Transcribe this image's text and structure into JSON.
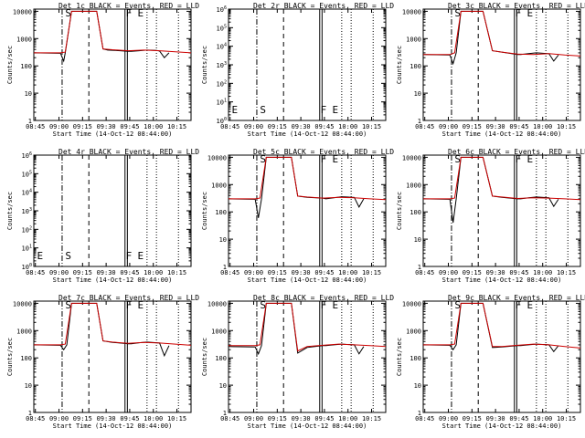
{
  "x_ticks": [
    "08:45",
    "09:00",
    "09:15",
    "09:30",
    "09:45",
    "10:00",
    "10:15"
  ],
  "xlabel": "Start Time (14-Oct-12 08:44:00)",
  "ylabel": "Counts/sec",
  "panels_flag_labels": [
    "E",
    "S",
    "F",
    "E"
  ],
  "colors": {
    "events": "#000000",
    "lld": "#cc0000"
  },
  "chart_data": [
    {
      "type": "line",
      "title": "Det 1c BLACK = Events, RED = LLD",
      "scale": "linear",
      "y_ticks": [
        "1",
        "10",
        "100",
        "1000",
        "10000"
      ],
      "ylim_log10": [
        0,
        4.08
      ],
      "x_range_min": [
        0,
        100
      ],
      "flag_labels_shown": [
        false,
        true,
        true,
        true
      ],
      "flags_x_min": [
        2,
        21,
        41,
        61
      ],
      "series": [
        {
          "name": "Events",
          "color": "#000000",
          "x": [
            0,
            17,
            19,
            20,
            24,
            40,
            44,
            47,
            55,
            60,
            62,
            67,
            72,
            78,
            80,
            83,
            86
          ],
          "y": [
            300,
            290,
            150,
            300,
            10000,
            10000,
            420,
            380,
            360,
            340,
            340,
            360,
            380,
            370,
            350,
            200,
            300
          ],
          "y_visible_from": 19
        },
        {
          "name": "LLD",
          "color": "#cc0000",
          "x": [
            0,
            17,
            20,
            24,
            40,
            44,
            50,
            60,
            70,
            80,
            90,
            100
          ],
          "y": [
            300,
            300,
            320,
            10000,
            10000,
            420,
            390,
            360,
            380,
            360,
            330,
            300
          ]
        }
      ]
    },
    {
      "type": "line",
      "title": "Det 2r BLACK = Events, RED = LLD",
      "scale": "sci",
      "y_ticks": [
        "10^0",
        "10^1",
        "10^2",
        "10^3",
        "10^4",
        "10^5",
        "10^6"
      ],
      "ylim_log10": [
        0,
        6
      ],
      "x_range_min": [
        0,
        100
      ],
      "flag_labels_shown": [
        true,
        true,
        true,
        true
      ],
      "flags_x_min": [
        2,
        21,
        41,
        61
      ],
      "series": []
    },
    {
      "type": "line",
      "title": "Det 3c BLACK = Events, RED = LLD",
      "scale": "linear",
      "y_ticks": [
        "1",
        "10",
        "100",
        "1000",
        "10000"
      ],
      "ylim_log10": [
        0,
        4.08
      ],
      "x_range_min": [
        0,
        100
      ],
      "flag_labels_shown": [
        false,
        true,
        true,
        true
      ],
      "flags_x_min": [
        2,
        21,
        41,
        61
      ],
      "series": [
        {
          "name": "Events",
          "color": "#000000",
          "x": [
            0,
            17,
            19,
            21,
            24,
            38,
            44,
            50,
            60,
            62,
            67,
            72,
            80,
            83,
            86
          ],
          "y": [
            260,
            250,
            120,
            300,
            10000,
            10000,
            360,
            320,
            260,
            260,
            280,
            300,
            280,
            150,
            250
          ],
          "y_visible_from": 19
        },
        {
          "name": "LLD",
          "color": "#cc0000",
          "x": [
            0,
            17,
            20,
            24,
            38,
            44,
            50,
            60,
            70,
            80,
            90,
            100
          ],
          "y": [
            260,
            260,
            300,
            10000,
            10000,
            360,
            320,
            270,
            260,
            280,
            250,
            230
          ]
        }
      ]
    },
    {
      "type": "line",
      "title": "Det 4r BLACK = Events, RED = LLD",
      "scale": "sci",
      "y_ticks": [
        "10^0",
        "10^1",
        "10^2",
        "10^3",
        "10^4",
        "10^5",
        "10^6"
      ],
      "ylim_log10": [
        0,
        6
      ],
      "x_range_min": [
        0,
        100
      ],
      "flag_labels_shown": [
        true,
        true,
        true,
        true
      ],
      "flags_x_min": [
        2,
        21,
        41,
        61
      ],
      "series": []
    },
    {
      "type": "line",
      "title": "Det 5c BLACK = Events, RED = LLD",
      "scale": "linear",
      "y_ticks": [
        "1",
        "10",
        "100",
        "1000",
        "10000"
      ],
      "ylim_log10": [
        0,
        4.08
      ],
      "x_range_min": [
        0,
        100
      ],
      "flag_labels_shown": [
        false,
        true,
        true,
        true
      ],
      "flags_x_min": [
        2,
        21,
        41,
        61
      ],
      "series": [
        {
          "name": "Events",
          "color": "#000000",
          "x": [
            0,
            17,
            19,
            21,
            24,
            40,
            44,
            50,
            60,
            62,
            67,
            72,
            80,
            83,
            86
          ],
          "y": [
            300,
            290,
            60,
            300,
            10000,
            10000,
            380,
            340,
            320,
            300,
            330,
            360,
            340,
            150,
            300
          ],
          "y_visible_from": 19
        },
        {
          "name": "LLD",
          "color": "#cc0000",
          "x": [
            0,
            17,
            20,
            24,
            40,
            44,
            50,
            60,
            70,
            80,
            90,
            100
          ],
          "y": [
            300,
            300,
            320,
            10000,
            10000,
            380,
            350,
            320,
            340,
            330,
            300,
            280
          ]
        }
      ]
    },
    {
      "type": "line",
      "title": "Det 6c BLACK = Events, RED = LLD",
      "scale": "linear",
      "y_ticks": [
        "1",
        "10",
        "100",
        "1000",
        "10000"
      ],
      "ylim_log10": [
        0,
        4.08
      ],
      "x_range_min": [
        0,
        100
      ],
      "flag_labels_shown": [
        false,
        true,
        true,
        true
      ],
      "flags_x_min": [
        2,
        21,
        41,
        61
      ],
      "series": [
        {
          "name": "Events",
          "color": "#000000",
          "x": [
            0,
            17,
            19,
            21,
            24,
            38,
            44,
            50,
            60,
            62,
            67,
            72,
            80,
            83,
            86
          ],
          "y": [
            300,
            290,
            40,
            300,
            10000,
            10000,
            380,
            340,
            300,
            300,
            330,
            350,
            330,
            160,
            290
          ],
          "y_visible_from": 19
        },
        {
          "name": "LLD",
          "color": "#cc0000",
          "x": [
            0,
            17,
            20,
            24,
            38,
            44,
            50,
            60,
            70,
            80,
            90,
            100
          ],
          "y": [
            300,
            300,
            320,
            10000,
            10000,
            380,
            350,
            310,
            330,
            320,
            300,
            280
          ]
        }
      ]
    },
    {
      "type": "line",
      "title": "Det 7c BLACK = Events, RED = LLD",
      "scale": "linear",
      "y_ticks": [
        "1",
        "10",
        "100",
        "1000",
        "10000"
      ],
      "ylim_log10": [
        0,
        4.08
      ],
      "x_range_min": [
        0,
        100
      ],
      "flag_labels_shown": [
        false,
        true,
        true,
        true
      ],
      "flags_x_min": [
        2,
        21,
        41,
        61
      ],
      "series": [
        {
          "name": "Events",
          "color": "#000000",
          "x": [
            0,
            17,
            19,
            21,
            24,
            40,
            44,
            50,
            60,
            62,
            67,
            72,
            80,
            83,
            86
          ],
          "y": [
            300,
            290,
            200,
            300,
            10000,
            10000,
            420,
            370,
            330,
            330,
            360,
            380,
            350,
            120,
            280
          ],
          "y_visible_from": 19
        },
        {
          "name": "LLD",
          "color": "#cc0000",
          "x": [
            0,
            17,
            20,
            24,
            40,
            44,
            50,
            60,
            70,
            80,
            90,
            100
          ],
          "y": [
            300,
            300,
            320,
            10000,
            10000,
            420,
            380,
            340,
            370,
            350,
            320,
            290
          ]
        }
      ]
    },
    {
      "type": "line",
      "title": "Det 8c BLACK = Events, RED = LLD",
      "scale": "linear",
      "y_ticks": [
        "1",
        "10",
        "100",
        "1000",
        "10000"
      ],
      "ylim_log10": [
        0,
        4.08
      ],
      "x_range_min": [
        0,
        100
      ],
      "flag_labels_shown": [
        false,
        true,
        true,
        true
      ],
      "flags_x_min": [
        2,
        21,
        41,
        61
      ],
      "series": [
        {
          "name": "Events",
          "color": "#000000",
          "x": [
            0,
            17,
            19,
            21,
            24,
            40,
            44,
            50,
            60,
            62,
            67,
            72,
            80,
            83,
            86
          ],
          "y": [
            260,
            250,
            140,
            280,
            10000,
            10000,
            150,
            240,
            280,
            280,
            300,
            320,
            300,
            140,
            260
          ],
          "y_visible_from": 19
        },
        {
          "name": "LLD",
          "color": "#cc0000",
          "x": [
            0,
            17,
            20,
            24,
            40,
            44,
            50,
            60,
            70,
            80,
            90,
            100
          ],
          "y": [
            280,
            280,
            300,
            10000,
            10000,
            180,
            260,
            290,
            320,
            300,
            280,
            260
          ]
        }
      ]
    },
    {
      "type": "line",
      "title": "Det 9c BLACK = Events, RED = LLD",
      "scale": "linear",
      "y_ticks": [
        "1",
        "10",
        "100",
        "1000",
        "10000"
      ],
      "ylim_log10": [
        0,
        4.08
      ],
      "x_range_min": [
        0,
        100
      ],
      "flag_labels_shown": [
        false,
        true,
        true,
        true
      ],
      "flags_x_min": [
        2,
        21,
        41,
        61
      ],
      "series": [
        {
          "name": "Events",
          "color": "#000000",
          "x": [
            0,
            17,
            19,
            21,
            24,
            38,
            44,
            50,
            60,
            62,
            67,
            72,
            80,
            83,
            86
          ],
          "y": [
            300,
            290,
            200,
            300,
            10000,
            10000,
            240,
            250,
            280,
            280,
            300,
            320,
            300,
            170,
            280
          ],
          "y_visible_from": 19
        },
        {
          "name": "LLD",
          "color": "#cc0000",
          "x": [
            0,
            17,
            20,
            24,
            38,
            44,
            50,
            60,
            70,
            80,
            90,
            100
          ],
          "y": [
            300,
            300,
            320,
            10000,
            10000,
            260,
            260,
            290,
            320,
            300,
            260,
            230
          ]
        }
      ]
    }
  ]
}
